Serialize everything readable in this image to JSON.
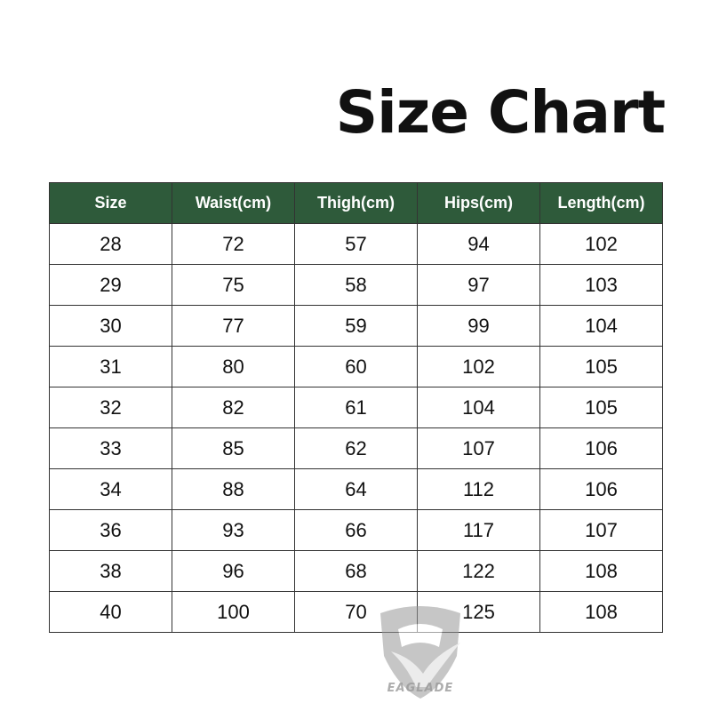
{
  "title": "Size Chart",
  "table": {
    "headers": [
      "Size",
      "Waist(cm)",
      "Thigh(cm)",
      "Hips(cm)",
      "Length(cm)"
    ],
    "rows": [
      [
        "28",
        "72",
        "57",
        "94",
        "102"
      ],
      [
        "29",
        "75",
        "58",
        "97",
        "103"
      ],
      [
        "30",
        "77",
        "59",
        "99",
        "104"
      ],
      [
        "31",
        "80",
        "60",
        "102",
        "105"
      ],
      [
        "32",
        "82",
        "61",
        "104",
        "105"
      ],
      [
        "33",
        "85",
        "62",
        "107",
        "106"
      ],
      [
        "34",
        "88",
        "64",
        "112",
        "106"
      ],
      [
        "36",
        "93",
        "66",
        "117",
        "107"
      ],
      [
        "38",
        "96",
        "68",
        "122",
        "108"
      ],
      [
        "40",
        "100",
        "70",
        "125",
        "108"
      ]
    ]
  },
  "watermark": {
    "text": "EAGLADE",
    "icon": "eagle-shield-logo"
  },
  "colors": {
    "header_bg": "#2e5a3a",
    "header_text": "#ffffff"
  }
}
